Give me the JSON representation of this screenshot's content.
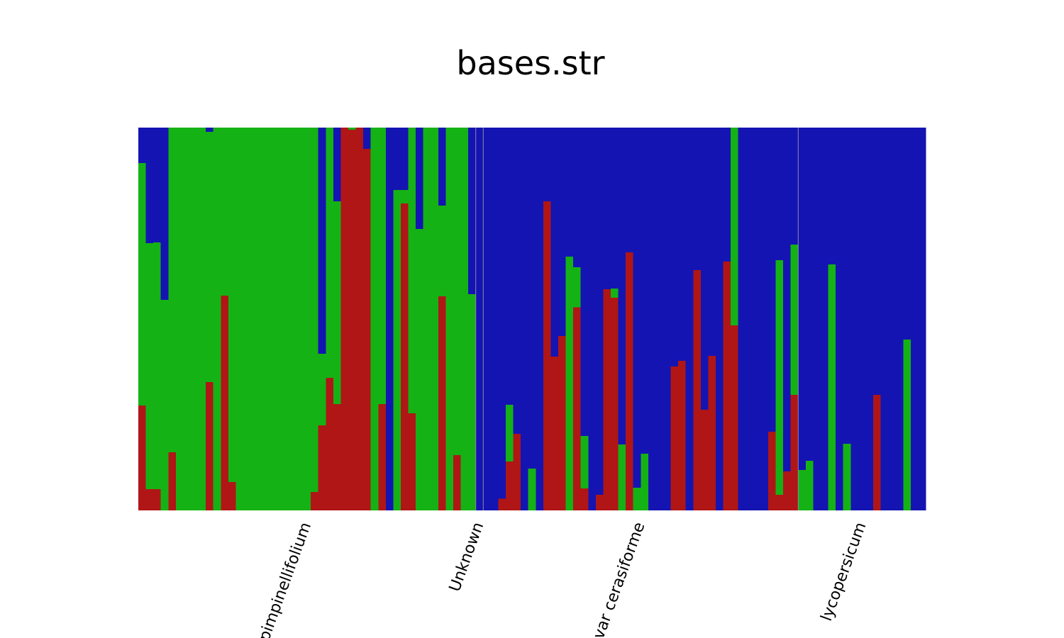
{
  "chart_data": {
    "type": "bar",
    "stacked": true,
    "title": "bases.str",
    "ylim": [
      0,
      1
    ],
    "categories": [
      "pimpinellifolium",
      "pimpinellifolium",
      "pimpinellifolium",
      "pimpinellifolium",
      "pimpinellifolium",
      "pimpinellifolium",
      "pimpinellifolium",
      "pimpinellifolium",
      "pimpinellifolium",
      "pimpinellifolium",
      "pimpinellifolium",
      "pimpinellifolium",
      "pimpinellifolium",
      "pimpinellifolium",
      "pimpinellifolium",
      "pimpinellifolium",
      "pimpinellifolium",
      "pimpinellifolium",
      "pimpinellifolium",
      "pimpinellifolium",
      "pimpinellifolium",
      "pimpinellifolium",
      "pimpinellifolium",
      "pimpinellifolium",
      "pimpinellifolium",
      "pimpinellifolium",
      "pimpinellifolium",
      "pimpinellifolium",
      "pimpinellifolium",
      "pimpinellifolium",
      "pimpinellifolium",
      "pimpinellifolium",
      "pimpinellifolium",
      "pimpinellifolium",
      "pimpinellifolium",
      "pimpinellifolium",
      "pimpinellifolium",
      "pimpinellifolium",
      "pimpinellifolium",
      "pimpinellifolium",
      "pimpinellifolium",
      "pimpinellifolium",
      "pimpinellifolium",
      "pimpinellifolium",
      "pimpinellifolium",
      "Unknown",
      "var cerasiforme",
      "var cerasiforme",
      "var cerasiforme",
      "var cerasiforme",
      "var cerasiforme",
      "var cerasiforme",
      "var cerasiforme",
      "var cerasiforme",
      "var cerasiforme",
      "var cerasiforme",
      "var cerasiforme",
      "var cerasiforme",
      "var cerasiforme",
      "var cerasiforme",
      "var cerasiforme",
      "var cerasiforme",
      "var cerasiforme",
      "var cerasiforme",
      "var cerasiforme",
      "var cerasiforme",
      "var cerasiforme",
      "var cerasiforme",
      "var cerasiforme",
      "var cerasiforme",
      "var cerasiforme",
      "var cerasiforme",
      "var cerasiforme",
      "var cerasiforme",
      "var cerasiforme",
      "var cerasiforme",
      "var cerasiforme",
      "var cerasiforme",
      "var cerasiforme",
      "var cerasiforme",
      "var cerasiforme",
      "var cerasiforme",
      "var cerasiforme",
      "var cerasiforme",
      "var cerasiforme",
      "var cerasiforme",
      "var cerasiforme",
      "var cerasiforme",
      "lycopersicum",
      "lycopersicum",
      "lycopersicum",
      "lycopersicum",
      "lycopersicum",
      "lycopersicum",
      "lycopersicum",
      "lycopersicum",
      "lycopersicum",
      "lycopersicum",
      "lycopersicum",
      "lycopersicum",
      "lycopersicum",
      "lycopersicum",
      "lycopersicum",
      "lycopersicum",
      "lycopersicum"
    ],
    "series": [
      {
        "color": "#b01616",
        "values": [
          0.274,
          0.056,
          0.056,
          0,
          0.152,
          0,
          0,
          0,
          0,
          0.335,
          0,
          0.561,
          0.074,
          0,
          0,
          0,
          0,
          0,
          0,
          0,
          0,
          0,
          0,
          0.048,
          0.222,
          0.346,
          0.278,
          1,
          0.994,
          1,
          0.944,
          0,
          0.278,
          0,
          0,
          0.802,
          0.254,
          0,
          0,
          0,
          0.559,
          0,
          0.144,
          0,
          0,
          0,
          0,
          0,
          0.031,
          0.128,
          0.2,
          0,
          0,
          0,
          0.807,
          0.402,
          0.456,
          0,
          0.531,
          0.057,
          0,
          0.041,
          0.578,
          0.556,
          0,
          0.674,
          0,
          0,
          0,
          0,
          0,
          0.376,
          0.391,
          0,
          0.628,
          0.263,
          0.404,
          0,
          0.65,
          0.483,
          0,
          0,
          0,
          0,
          0.206,
          0.041,
          0.102,
          0.302,
          0,
          0,
          0,
          0,
          0,
          0,
          0,
          0,
          0,
          0,
          0.302,
          0,
          0,
          0,
          0,
          0,
          0
        ]
      },
      {
        "color": "#15b215",
        "values": [
          0.633,
          0.642,
          0.644,
          0.55,
          0.848,
          1,
          1,
          1,
          1,
          0.654,
          1,
          0.439,
          0.926,
          1,
          1,
          1,
          1,
          1,
          1,
          1,
          1,
          1,
          1,
          0.952,
          0.187,
          0.654,
          0.529,
          0,
          0.006,
          0,
          0,
          1,
          0.722,
          0,
          0.837,
          0.035,
          0.746,
          0.735,
          1,
          1,
          0.237,
          1,
          0.856,
          1,
          0.565,
          0,
          0,
          0,
          0,
          0.148,
          0,
          0,
          0.109,
          0,
          0,
          0,
          0,
          0.663,
          0.104,
          0.137,
          0,
          0,
          0,
          0.024,
          0.172,
          0,
          0.059,
          0.148,
          0,
          0,
          0,
          0,
          0,
          0,
          0,
          0,
          0,
          0,
          0,
          0.517,
          0,
          0,
          0,
          0,
          0,
          0.613,
          0,
          0.392,
          0.106,
          0.13,
          0,
          0,
          0.643,
          0,
          0.174,
          0,
          0,
          0,
          0,
          0,
          0,
          0,
          0.446,
          0,
          0
        ]
      },
      {
        "color": "#1414b2",
        "values": [
          0.093,
          0.302,
          0.3,
          0.45,
          0,
          0,
          0,
          0,
          0,
          0.011,
          0,
          0,
          0,
          0,
          0,
          0,
          0,
          0,
          0,
          0,
          0,
          0,
          0,
          0,
          0.591,
          0,
          0.193,
          0,
          0,
          0,
          0.056,
          0,
          0,
          1,
          0.163,
          0.163,
          0,
          0.265,
          0,
          0,
          0.204,
          0,
          0,
          0,
          0.435,
          1,
          1,
          1,
          0.969,
          0.724,
          0.8,
          1,
          0.891,
          1,
          0.193,
          0.598,
          0.544,
          0.337,
          0.365,
          0.806,
          1,
          0.959,
          0.422,
          0.42,
          0.828,
          0.326,
          0.941,
          0.852,
          1,
          1,
          1,
          0.624,
          0.609,
          1,
          0.372,
          0.737,
          0.596,
          1,
          0.35,
          0,
          1,
          1,
          1,
          1,
          0.794,
          0.346,
          0.898,
          0.306,
          0.894,
          0.87,
          1,
          1,
          0.357,
          1,
          0.826,
          1,
          1,
          1,
          0.698,
          1,
          1,
          1,
          0.554,
          1,
          1
        ]
      }
    ]
  }
}
